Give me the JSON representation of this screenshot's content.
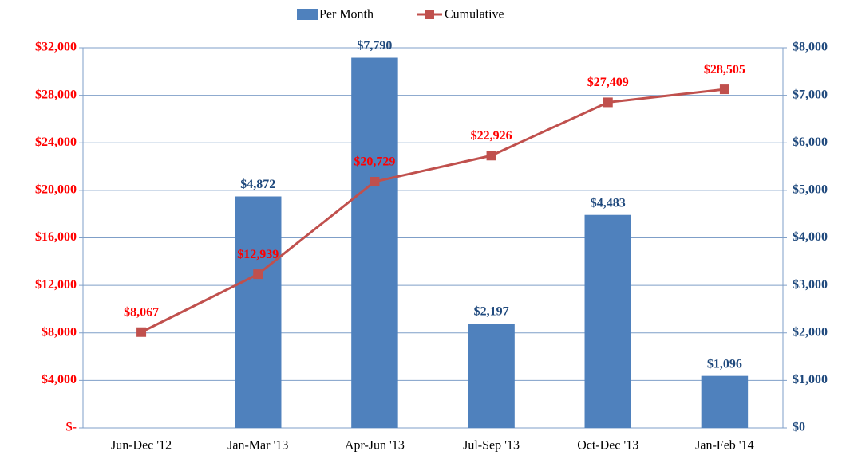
{
  "chart_data": {
    "type": "bar",
    "categories": [
      "Jun-Dec '12",
      "Jan-Mar '13",
      "Apr-Jun '13",
      "Jul-Sep '13",
      "Oct-Dec '13",
      "Jan-Feb '14"
    ],
    "series": [
      {
        "name": "Per Month",
        "type": "bar",
        "axis": "y2",
        "color": "#4f81bd",
        "values": [
          null,
          4872,
          7790,
          2197,
          4483,
          1096
        ],
        "value_labels": [
          null,
          "$4,872",
          "$7,790",
          "$2,197",
          "$4,483",
          "$1,096"
        ]
      },
      {
        "name": "Cumulative",
        "type": "line",
        "color": "#c0504d",
        "values": [
          8067,
          12939,
          20729,
          22926,
          27409,
          28505
        ],
        "value_labels": [
          "$8,067",
          "$12,939",
          "$20,729",
          "$22,926",
          "$27,409",
          "$28,505"
        ]
      }
    ],
    "ylim": [
      0,
      32000
    ],
    "yticks": [
      {
        "value": 0,
        "label": "$-"
      },
      {
        "value": 4000,
        "label": "$4,000"
      },
      {
        "value": 8000,
        "label": "$8,000"
      },
      {
        "value": 12000,
        "label": "$12,000"
      },
      {
        "value": 16000,
        "label": "$16,000"
      },
      {
        "value": 20000,
        "label": "$20,000"
      },
      {
        "value": 24000,
        "label": "$24,000"
      },
      {
        "value": 28000,
        "label": "$28,000"
      },
      {
        "value": 32000,
        "label": "$32,000"
      }
    ],
    "y2lim": [
      0,
      8000
    ],
    "y2ticks": [
      {
        "value": 0,
        "label": "$0"
      },
      {
        "value": 1000,
        "label": "$1,000"
      },
      {
        "value": 2000,
        "label": "$2,000"
      },
      {
        "value": 3000,
        "label": "$3,000"
      },
      {
        "value": 4000,
        "label": "$4,000"
      },
      {
        "value": 5000,
        "label": "$5,000"
      },
      {
        "value": 6000,
        "label": "$6,000"
      },
      {
        "value": 7000,
        "label": "$7,000"
      },
      {
        "value": 8000,
        "label": "$8,000"
      }
    ],
    "grid": true,
    "legend": "top"
  }
}
